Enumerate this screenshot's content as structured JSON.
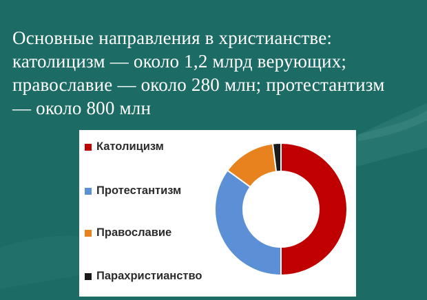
{
  "slide": {
    "text_lines": [
      "Основные направления в христианстве:",
      "католицизм — около 1,2 млрд верующих;",
      "православие — около 280 млн; протестантизм",
      "— около 800 млн"
    ]
  },
  "colors": {
    "background": "#1c6b64",
    "catholicism": "#c00000",
    "protestantism": "#5b8fd6",
    "orthodoxy": "#e8821e",
    "parachristianity": "#1a1a1a"
  },
  "chart_data": {
    "type": "pie",
    "variant": "donut",
    "title": "",
    "legend_position": "left",
    "labels": [
      "Католицизм",
      "Протестантизм",
      "Православие",
      "Парахристианство"
    ],
    "values": [
      50,
      35,
      13,
      2
    ],
    "colors": [
      "#c00000",
      "#5b8fd6",
      "#e8821e",
      "#1a1a1a"
    ]
  }
}
